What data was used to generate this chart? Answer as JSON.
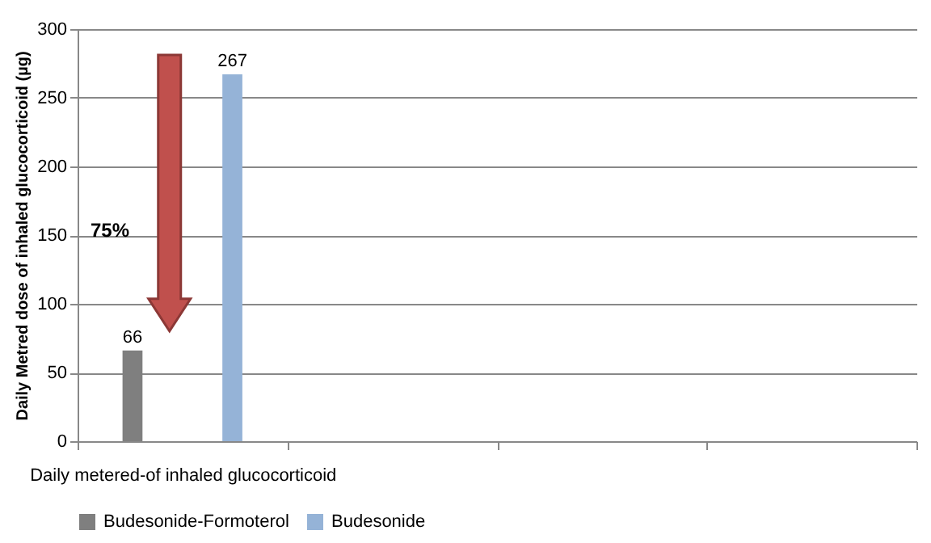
{
  "chart_data": {
    "type": "bar",
    "ylabel": "Daily Metred dose of inhaled glucocorticoid (µg)",
    "categories": [
      "Daily metered-of inhaled glucocorticoid",
      null,
      null,
      null
    ],
    "series": [
      {
        "name": "Budesonide-Formoterol",
        "color": "#7f7f7f",
        "values": [
          66,
          null,
          null,
          null
        ]
      },
      {
        "name": "Budesonide",
        "color": "#95b3d7",
        "values": [
          267,
          null,
          null,
          null
        ]
      }
    ],
    "ylim": [
      0,
      300
    ],
    "yticks": [
      0,
      50,
      100,
      150,
      200,
      250,
      300
    ],
    "grid": "y",
    "legend": "bottom",
    "data_labels": true,
    "annotations": [
      "75%"
    ]
  }
}
